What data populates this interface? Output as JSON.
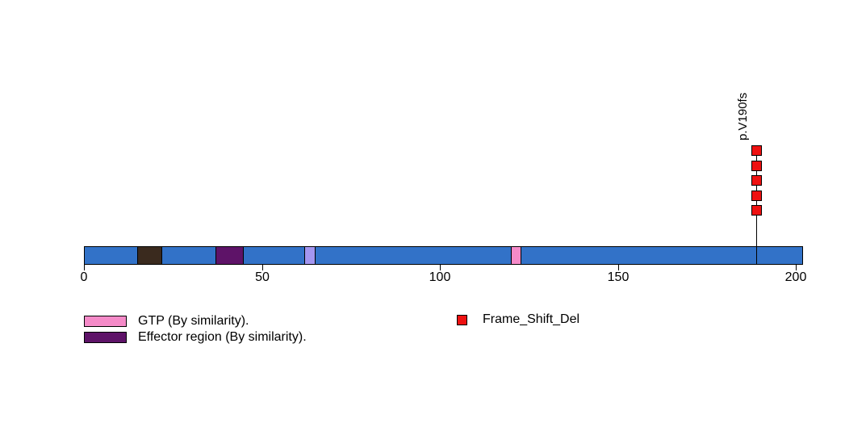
{
  "chart_data": {
    "type": "lollipop",
    "title": "",
    "xlabel": "",
    "axis": {
      "min": 0,
      "max": 202,
      "ticks": [
        0,
        50,
        100,
        150,
        200
      ],
      "tick_labels": [
        "0",
        "50",
        "100",
        "150",
        "200"
      ]
    },
    "protein_bar": {
      "start": 0,
      "end": 202,
      "color": "#3272C8"
    },
    "domains": [
      {
        "start": 15,
        "end": 22,
        "color": "#3A2A1E"
      },
      {
        "start": 37,
        "end": 45,
        "color": "#5E1368"
      },
      {
        "start": 62,
        "end": 65,
        "color": "#A496F0"
      },
      {
        "start": 120,
        "end": 123,
        "color": "#F58AC8"
      }
    ],
    "mutations": [
      {
        "label": "p.V190fs",
        "position": 189,
        "count": 5,
        "type": "Frame_Shift_Del",
        "color": "#EE1111",
        "shape": "square"
      }
    ],
    "legends": {
      "domain_legend": [
        {
          "label": "GTP (By similarity).",
          "color": "#F58AC8"
        },
        {
          "label": "Effector region (By similarity).",
          "color": "#5E1368"
        }
      ],
      "mutation_legend": [
        {
          "label": "Frame_Shift_Del",
          "color": "#EE1111"
        }
      ]
    }
  }
}
